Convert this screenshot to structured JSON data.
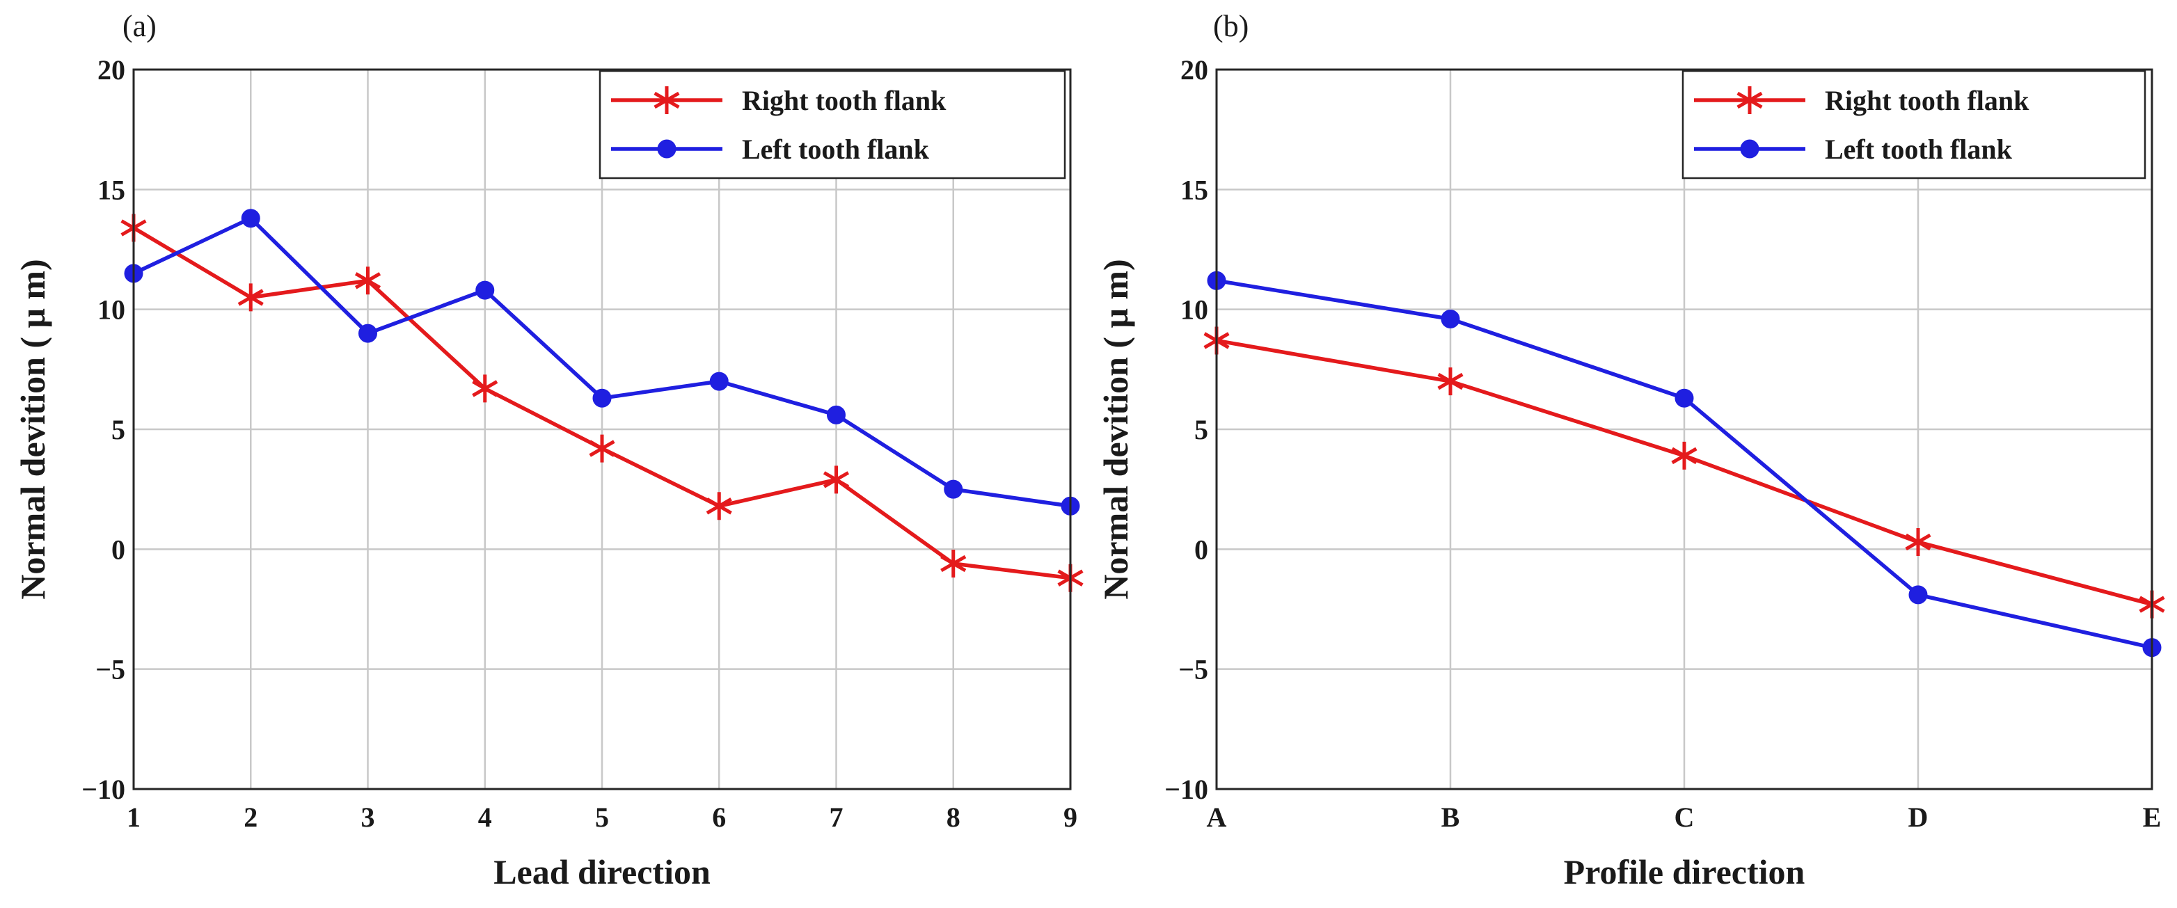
{
  "chart_data": [
    {
      "type": "line",
      "panel": "(a)",
      "xlabel": "Lead direction",
      "ylabel": "Normal devition ( μ m)",
      "categories": [
        "1",
        "2",
        "3",
        "4",
        "5",
        "6",
        "7",
        "8",
        "9"
      ],
      "ylim": [
        -10,
        20
      ],
      "yticks": [
        -10,
        -5,
        0,
        5,
        10,
        15,
        20
      ],
      "grid": true,
      "legend_position": "top-right",
      "series": [
        {
          "name": "Right tooth flank",
          "color": "#e41a1c",
          "marker": "star",
          "values": [
            13.4,
            10.5,
            11.2,
            6.7,
            4.2,
            1.8,
            2.9,
            -0.6,
            -1.2
          ]
        },
        {
          "name": "Left tooth flank",
          "color": "#1f1fe0",
          "marker": "circle",
          "values": [
            11.5,
            13.8,
            9.0,
            10.8,
            6.3,
            7.0,
            5.6,
            2.5,
            1.8
          ]
        }
      ]
    },
    {
      "type": "line",
      "panel": "(b)",
      "xlabel": "Profile direction",
      "ylabel": "Normal devition ( μ m)",
      "categories": [
        "A",
        "B",
        "C",
        "D",
        "E"
      ],
      "ylim": [
        -10,
        20
      ],
      "yticks": [
        -10,
        -5,
        0,
        5,
        10,
        15,
        20
      ],
      "grid": true,
      "legend_position": "top-right",
      "series": [
        {
          "name": "Right tooth flank",
          "color": "#e41a1c",
          "marker": "star",
          "values": [
            8.7,
            7.0,
            3.9,
            0.3,
            -2.3
          ]
        },
        {
          "name": "Left tooth flank",
          "color": "#1f1fe0",
          "marker": "circle",
          "values": [
            11.2,
            9.6,
            6.3,
            -1.9,
            -4.1
          ]
        }
      ]
    }
  ]
}
